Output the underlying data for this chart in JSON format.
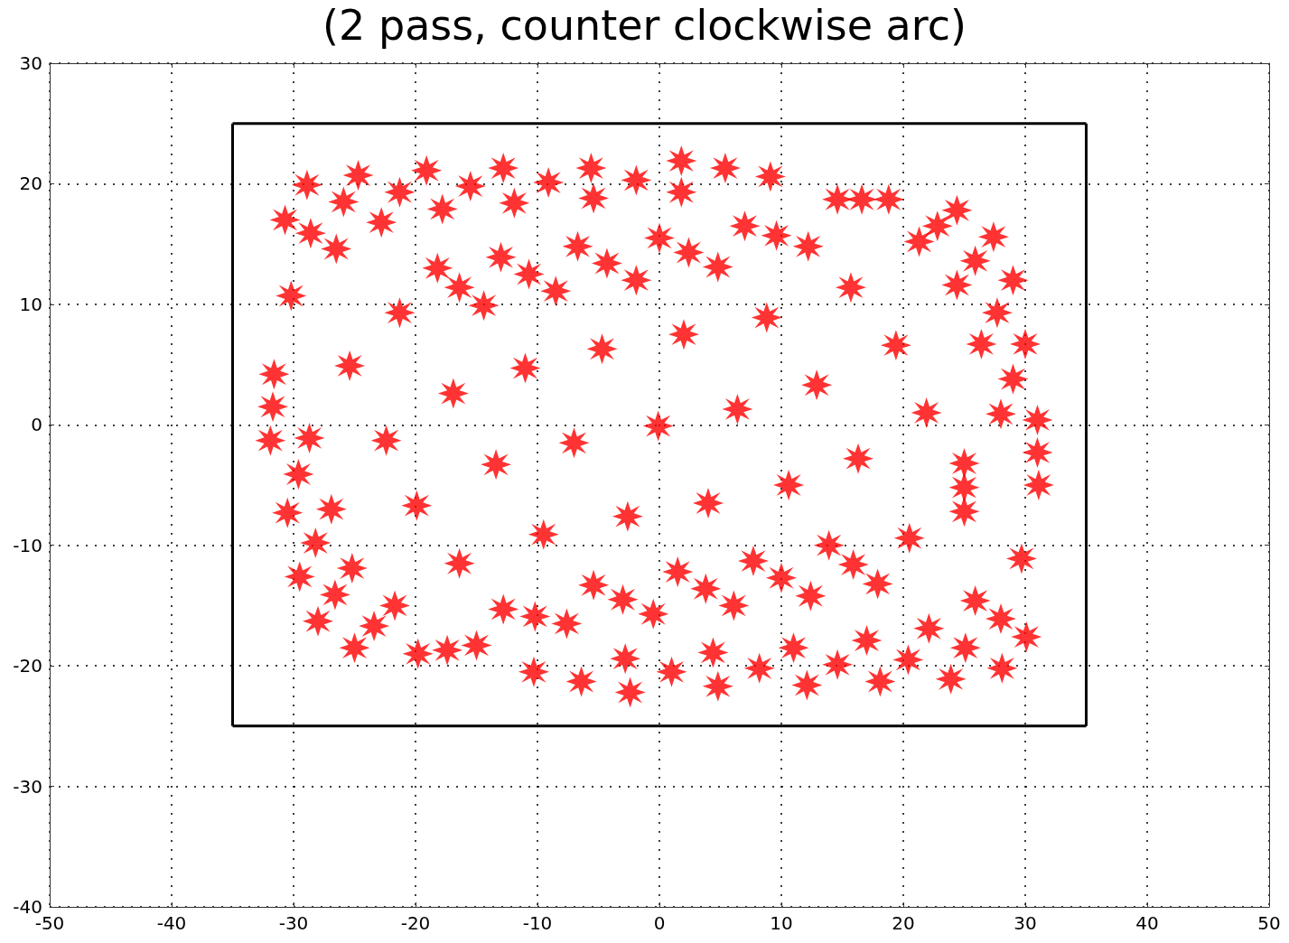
{
  "chart_data": {
    "type": "scatter",
    "title": "(2 pass, counter clockwise arc)",
    "xlim": [
      -50,
      50
    ],
    "xticks": [
      -50,
      -40,
      -30,
      -20,
      -10,
      0,
      10,
      20,
      30,
      40,
      50
    ],
    "ylim": [
      -40,
      30
    ],
    "yticks": [
      -40,
      -30,
      -20,
      -10,
      0,
      10,
      20,
      30
    ],
    "grid": true,
    "marker": "star",
    "series": [
      {
        "type": "scatter",
        "color": "#ff0000",
        "x": [
          -28.9,
          -25.9,
          -22.8,
          -24.7,
          -21.3,
          -17.8,
          -19.1,
          -15.5,
          -11.9,
          -12.8,
          -9.1,
          -5.4,
          -5.6,
          -1.9,
          1.8,
          1.8,
          5.4,
          9.1,
          -30.7,
          -28.6,
          -26.5,
          14.6,
          16.6,
          18.8,
          21.3,
          22.8,
          24.4,
          24.4,
          25.9,
          27.4,
          26.4,
          27.7,
          29.0,
          28.0,
          29.0,
          30.0,
          31.0,
          31.0,
          31.1,
          -13.0,
          -10.7,
          -8.5,
          -6.7,
          -4.3,
          -1.9,
          0,
          2.4,
          4.8,
          7.0,
          9.6,
          12.2,
          -18.2,
          -16.4,
          -14.4,
          15.7,
          -30.2,
          -21.3,
          8.8,
          2.0,
          -4.7,
          19.4,
          -25.4,
          -11.0,
          -16.9,
          12.9,
          -31.6,
          -31.7,
          -31.9,
          6.4,
          21.9,
          -0.1,
          -22.4,
          -7.0,
          -28.7,
          -29.6,
          -30.5,
          16.3,
          -13.4,
          25.0,
          25.0,
          25.0,
          10.6,
          -19.9,
          4.0,
          -2.6,
          -9.5,
          -26.9,
          -28.2,
          -29.5,
          20.5,
          29.7,
          -16.4,
          -25.2,
          -26.6,
          -28.0,
          7.7,
          10.0,
          12.4,
          13.9,
          15.9,
          17.9,
          1.5,
          3.8,
          6.1,
          -5.4,
          -3.0,
          -0.5,
          -12.8,
          -10.2,
          -7.6,
          -21.7,
          -23.4,
          -25.0,
          25.9,
          28.0,
          30.1,
          -19.8,
          -17.4,
          -15.0,
          22.1,
          25.1,
          28.1,
          17.0,
          20.4,
          23.9,
          11.0,
          14.6,
          18.1,
          4.4,
          8.2,
          12.1,
          -2.8,
          1.0,
          4.8,
          -10.3,
          -6.4,
          -2.4
        ],
        "values": [
          19.9,
          18.5,
          16.8,
          20.7,
          19.3,
          17.9,
          21.1,
          19.8,
          18.4,
          21.3,
          20.1,
          18.8,
          21.3,
          20.3,
          19.3,
          21.9,
          21.3,
          20.6,
          17.0,
          15.9,
          14.6,
          18.7,
          18.7,
          18.7,
          15.2,
          16.5,
          17.8,
          11.6,
          13.6,
          15.6,
          6.7,
          9.3,
          12.0,
          0.9,
          3.8,
          6.7,
          0.4,
          -2.3,
          -5.0,
          13.9,
          12.5,
          11.1,
          14.8,
          13.4,
          12.0,
          15.5,
          14.3,
          13.1,
          16.5,
          15.7,
          14.8,
          13.0,
          11.4,
          9.9,
          11.4,
          10.7,
          9.3,
          8.9,
          7.5,
          6.3,
          6.6,
          4.9,
          4.7,
          2.6,
          3.3,
          4.2,
          1.5,
          -1.3,
          1.3,
          1.0,
          -0.1,
          -1.3,
          -1.5,
          -1.1,
          -4.1,
          -7.3,
          -2.8,
          -3.3,
          -3.2,
          -5.2,
          -7.2,
          -5.0,
          -6.7,
          -6.5,
          -7.6,
          -9.1,
          -7.0,
          -9.8,
          -12.6,
          -9.4,
          -11.1,
          -11.5,
          -11.9,
          -14.1,
          -16.3,
          -11.3,
          -12.7,
          -14.2,
          -10.0,
          -11.6,
          -13.2,
          -12.2,
          -13.6,
          -15.0,
          -13.3,
          -14.5,
          -15.7,
          -15.3,
          -15.9,
          -16.5,
          -15.0,
          -16.7,
          -18.5,
          -14.6,
          -16.1,
          -17.6,
          -19.0,
          -18.7,
          -18.3,
          -16.9,
          -18.5,
          -20.2,
          -17.9,
          -19.5,
          -21.1,
          -18.5,
          -19.9,
          -21.3,
          -18.9,
          -20.2,
          -21.6,
          -19.4,
          -20.5,
          -21.7,
          -20.5,
          -21.3,
          -22.2
        ]
      },
      {
        "type": "line",
        "color": "#000000",
        "marker": "none",
        "line_style": "solid",
        "x": [
          -35,
          35
        ],
        "values": [
          -25,
          -25
        ]
      },
      {
        "type": "line",
        "color": "#000000",
        "marker": "none",
        "line_style": "solid",
        "x": [
          35,
          35
        ],
        "values": [
          -25,
          25
        ]
      },
      {
        "type": "line",
        "color": "#000000",
        "marker": "none",
        "line_style": "solid",
        "x": [
          -35,
          35
        ],
        "values": [
          25,
          25
        ]
      },
      {
        "type": "line",
        "color": "#000000",
        "marker": "none",
        "line_style": "solid",
        "x": [
          -35,
          -35
        ],
        "values": [
          -25,
          25
        ]
      }
    ]
  }
}
